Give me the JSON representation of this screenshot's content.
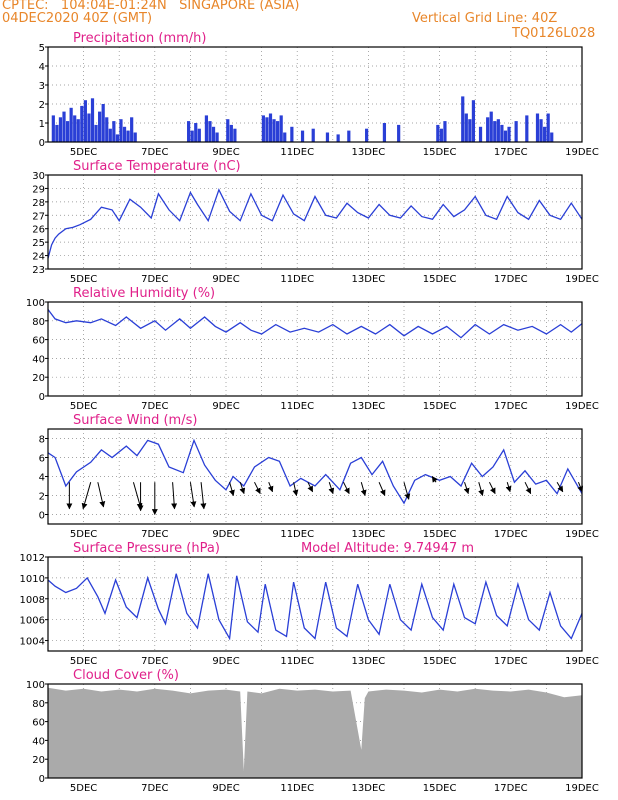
{
  "header": {
    "line1": "CPTEC:   104:04E-01:24N   SINGAPORE (ASIA)",
    "line2": "04DEC2020 40Z (GMT)",
    "right1": "Vertical Grid Line: 40Z",
    "right2": "TQ0126L028",
    "model_altitude": "Model Altitude: 9.74947 m"
  },
  "colors": {
    "header": "#e8862a",
    "title": "#e0208a",
    "series": "#2a3fd6",
    "bars": "#2a3fd6",
    "cloud": "#aaaaaa",
    "arrow": "#000000"
  },
  "x_ticks": [
    "5DEC",
    "7DEC",
    "9DEC",
    "11DEC",
    "13DEC",
    "15DEC",
    "17DEC",
    "19DEC"
  ],
  "chart_data": [
    {
      "type": "bar",
      "title": "Precipitation (mm/h)",
      "ylim": [
        0,
        5
      ],
      "yticks": [
        "0",
        "1",
        "2",
        "3",
        "4",
        "5"
      ],
      "x": [
        4.15,
        4.25,
        4.35,
        4.45,
        4.55,
        4.65,
        4.75,
        4.85,
        4.95,
        5.05,
        5.15,
        5.25,
        5.35,
        5.45,
        5.55,
        5.65,
        5.75,
        5.85,
        5.95,
        6.05,
        6.15,
        6.25,
        6.35,
        6.45,
        7.95,
        8.05,
        8.15,
        8.25,
        8.45,
        8.55,
        8.65,
        8.75,
        9.05,
        9.15,
        9.25,
        10.05,
        10.15,
        10.25,
        10.35,
        10.45,
        10.55,
        10.65,
        10.85,
        11.15,
        11.45,
        11.85,
        12.15,
        12.45,
        12.95,
        13.45,
        13.85,
        14.95,
        15.05,
        15.15,
        15.65,
        15.75,
        15.85,
        15.95,
        16.15,
        16.35,
        16.45,
        16.55,
        16.65,
        16.75,
        16.85,
        16.95,
        17.15,
        17.45,
        17.75,
        17.85,
        17.95,
        18.05,
        18.15
      ],
      "values": [
        1.4,
        0.9,
        1.3,
        1.6,
        1.1,
        1.8,
        1.4,
        1.2,
        1.9,
        2.2,
        1.5,
        2.3,
        0.9,
        1.6,
        2.0,
        1.3,
        0.7,
        1.1,
        0.4,
        1.2,
        0.8,
        0.6,
        1.3,
        0.5,
        1.1,
        0.6,
        1.0,
        0.7,
        1.4,
        1.1,
        0.8,
        0.5,
        1.2,
        0.9,
        0.7,
        1.4,
        1.3,
        1.5,
        1.2,
        1.1,
        1.4,
        0.5,
        0.8,
        0.6,
        0.7,
        0.5,
        0.4,
        0.6,
        0.7,
        1.0,
        0.9,
        0.9,
        0.7,
        1.1,
        2.4,
        1.5,
        1.2,
        2.2,
        0.8,
        1.3,
        1.6,
        1.1,
        1.2,
        0.9,
        0.6,
        0.8,
        1.1,
        1.4,
        1.5,
        1.2,
        0.8,
        1.5,
        0.5
      ]
    },
    {
      "type": "line",
      "title": "Surface Temperature (nC)",
      "ylim": [
        23,
        30
      ],
      "yticks": [
        "23",
        "24",
        "25",
        "26",
        "27",
        "28",
        "29",
        "30"
      ],
      "x": [
        4.0,
        4.1,
        4.2,
        4.3,
        4.5,
        4.7,
        4.9,
        5.2,
        5.5,
        5.8,
        6.0,
        6.3,
        6.6,
        6.9,
        7.1,
        7.4,
        7.7,
        8.0,
        8.2,
        8.5,
        8.8,
        9.1,
        9.4,
        9.7,
        10.0,
        10.3,
        10.6,
        10.9,
        11.2,
        11.5,
        11.8,
        12.1,
        12.4,
        12.7,
        13.0,
        13.3,
        13.6,
        13.9,
        14.2,
        14.5,
        14.8,
        15.1,
        15.4,
        15.7,
        16.0,
        16.3,
        16.6,
        16.9,
        17.2,
        17.5,
        17.8,
        18.1,
        18.4,
        18.7,
        19.0
      ],
      "values": [
        23.8,
        24.8,
        25.3,
        25.6,
        26.0,
        26.1,
        26.3,
        26.7,
        27.6,
        27.4,
        26.6,
        28.2,
        27.6,
        26.8,
        28.6,
        27.4,
        26.6,
        28.7,
        27.8,
        26.6,
        28.9,
        27.3,
        26.6,
        28.6,
        27.0,
        26.6,
        28.5,
        27.1,
        26.6,
        28.4,
        27.0,
        26.8,
        27.9,
        27.2,
        26.8,
        27.8,
        27.0,
        26.8,
        27.7,
        26.9,
        26.7,
        27.8,
        26.9,
        27.4,
        28.4,
        27.0,
        26.7,
        28.4,
        27.2,
        26.7,
        28.1,
        27.0,
        26.7,
        27.9,
        26.7
      ]
    },
    {
      "type": "line",
      "title": "Relative Humidity (%)",
      "ylim": [
        0,
        100
      ],
      "yticks": [
        "0",
        "20",
        "40",
        "60",
        "80",
        "100"
      ],
      "x": [
        4.0,
        4.2,
        4.5,
        4.8,
        5.2,
        5.5,
        5.9,
        6.2,
        6.6,
        7.0,
        7.3,
        7.7,
        8.0,
        8.4,
        8.7,
        9.0,
        9.4,
        9.7,
        10.0,
        10.4,
        10.8,
        11.2,
        11.6,
        12.0,
        12.4,
        12.8,
        13.2,
        13.6,
        14.0,
        14.4,
        14.8,
        15.2,
        15.6,
        16.0,
        16.4,
        16.8,
        17.2,
        17.6,
        18.0,
        18.4,
        18.7,
        19.0
      ],
      "values": [
        92,
        82,
        78,
        80,
        78,
        82,
        75,
        84,
        72,
        80,
        70,
        82,
        72,
        84,
        74,
        68,
        78,
        70,
        66,
        76,
        68,
        72,
        68,
        76,
        66,
        74,
        66,
        76,
        64,
        74,
        66,
        74,
        62,
        76,
        66,
        76,
        70,
        74,
        66,
        76,
        68,
        77
      ]
    },
    {
      "type": "line",
      "title": "Surface Wind (m/s)",
      "ylim": [
        -1,
        9
      ],
      "yticks": [
        "0",
        "2",
        "4",
        "6",
        "8"
      ],
      "x": [
        4.0,
        4.2,
        4.5,
        4.8,
        5.2,
        5.5,
        5.8,
        6.2,
        6.5,
        6.8,
        7.1,
        7.4,
        7.8,
        8.1,
        8.4,
        8.7,
        9.0,
        9.2,
        9.5,
        9.8,
        10.2,
        10.5,
        10.8,
        11.1,
        11.5,
        11.8,
        12.2,
        12.5,
        12.8,
        13.1,
        13.4,
        13.7,
        14.0,
        14.3,
        14.6,
        15.0,
        15.3,
        15.6,
        15.9,
        16.2,
        16.5,
        16.8,
        17.1,
        17.4,
        17.7,
        18.0,
        18.3,
        18.6,
        19.0
      ],
      "values": [
        6.5,
        6.0,
        3.0,
        4.5,
        5.5,
        6.8,
        6.0,
        7.2,
        6.2,
        7.8,
        7.4,
        5.0,
        4.4,
        7.8,
        5.2,
        3.6,
        2.6,
        4.0,
        3.0,
        5.0,
        6.0,
        5.6,
        3.0,
        3.8,
        3.0,
        4.2,
        2.6,
        5.4,
        6.0,
        4.2,
        5.6,
        3.0,
        1.2,
        3.6,
        4.2,
        3.6,
        4.0,
        3.0,
        5.4,
        4.0,
        5.0,
        6.8,
        3.4,
        4.6,
        3.2,
        3.6,
        2.2,
        4.8,
        2.2
      ],
      "arrows": [
        [
          4.6,
          0.0,
          -2.8
        ],
        [
          5.2,
          -0.8,
          -2.8
        ],
        [
          5.4,
          0.6,
          -2.6
        ],
        [
          6.4,
          0.8,
          -2.8
        ],
        [
          6.6,
          0.0,
          -3.0
        ],
        [
          7.0,
          0.0,
          -3.4
        ],
        [
          7.5,
          0.2,
          -2.8
        ],
        [
          8.0,
          0.4,
          -2.6
        ],
        [
          8.3,
          0.3,
          -2.8
        ],
        [
          9.1,
          0.4,
          -1.4
        ],
        [
          9.4,
          0.4,
          -1.2
        ],
        [
          9.8,
          0.6,
          -1.2
        ],
        [
          10.2,
          0.4,
          -1.0
        ],
        [
          10.9,
          0.3,
          -1.4
        ],
        [
          11.3,
          0.5,
          -1.0
        ],
        [
          11.9,
          0.4,
          -1.2
        ],
        [
          12.3,
          0.6,
          -1.2
        ],
        [
          12.8,
          0.4,
          -1.4
        ],
        [
          13.3,
          0.6,
          -1.4
        ],
        [
          14.0,
          0.5,
          -1.8
        ],
        [
          14.9,
          -0.4,
          0.6
        ],
        [
          15.7,
          0.4,
          -1.2
        ],
        [
          16.1,
          0.4,
          -1.4
        ],
        [
          16.4,
          0.6,
          -1.2
        ],
        [
          16.9,
          0.3,
          -1.0
        ],
        [
          17.4,
          0.6,
          -1.2
        ],
        [
          18.3,
          0.6,
          -1.0
        ],
        [
          18.9,
          0.4,
          -1.0
        ]
      ]
    },
    {
      "type": "line",
      "title": "Surface Pressure (hPa)",
      "ylim": [
        1003,
        1012
      ],
      "yticks": [
        "1004",
        "1006",
        "1008",
        "1010",
        "1012"
      ],
      "x": [
        4.0,
        4.2,
        4.5,
        4.8,
        5.1,
        5.4,
        5.6,
        5.9,
        6.2,
        6.5,
        6.8,
        7.1,
        7.3,
        7.6,
        7.9,
        8.2,
        8.5,
        8.8,
        9.1,
        9.3,
        9.6,
        9.9,
        10.1,
        10.4,
        10.7,
        10.9,
        11.2,
        11.5,
        11.8,
        12.1,
        12.4,
        12.7,
        13.0,
        13.3,
        13.6,
        13.9,
        14.2,
        14.5,
        14.8,
        15.1,
        15.4,
        15.7,
        16.0,
        16.3,
        16.6,
        16.9,
        17.2,
        17.5,
        17.8,
        18.1,
        18.4,
        18.7,
        19.0
      ],
      "values": [
        1009.8,
        1009.2,
        1008.6,
        1009.0,
        1010.0,
        1008.2,
        1006.6,
        1009.8,
        1007.2,
        1006.2,
        1010.0,
        1007.0,
        1005.6,
        1010.4,
        1006.6,
        1005.2,
        1010.4,
        1006.0,
        1004.2,
        1010.2,
        1005.8,
        1004.8,
        1009.4,
        1005.0,
        1004.4,
        1009.6,
        1005.2,
        1004.2,
        1009.6,
        1005.2,
        1004.4,
        1009.4,
        1006.0,
        1004.6,
        1009.4,
        1006.0,
        1005.0,
        1009.4,
        1006.2,
        1005.0,
        1009.4,
        1006.2,
        1005.6,
        1009.6,
        1006.4,
        1005.4,
        1009.4,
        1006.0,
        1005.0,
        1008.6,
        1005.4,
        1004.2,
        1006.6
      ]
    },
    {
      "type": "area",
      "title": "Cloud Cover (%)",
      "ylim": [
        0,
        100
      ],
      "yticks": [
        "0",
        "20",
        "40",
        "60",
        "80",
        "100"
      ],
      "x": [
        4.0,
        4.5,
        5.0,
        5.5,
        6.0,
        6.5,
        7.0,
        7.5,
        8.0,
        8.5,
        9.0,
        9.4,
        9.5,
        9.6,
        10.0,
        10.5,
        11.0,
        11.5,
        12.0,
        12.5,
        12.8,
        12.9,
        13.0,
        13.5,
        14.0,
        14.5,
        15.0,
        15.5,
        16.0,
        16.5,
        17.0,
        17.5,
        18.0,
        18.5,
        19.0
      ],
      "values": [
        96,
        93,
        95,
        92,
        94,
        92,
        95,
        93,
        90,
        93,
        94,
        92,
        8,
        92,
        90,
        95,
        93,
        94,
        92,
        93,
        30,
        85,
        92,
        94,
        93,
        91,
        94,
        92,
        95,
        93,
        92,
        94,
        91,
        86,
        88
      ]
    }
  ]
}
